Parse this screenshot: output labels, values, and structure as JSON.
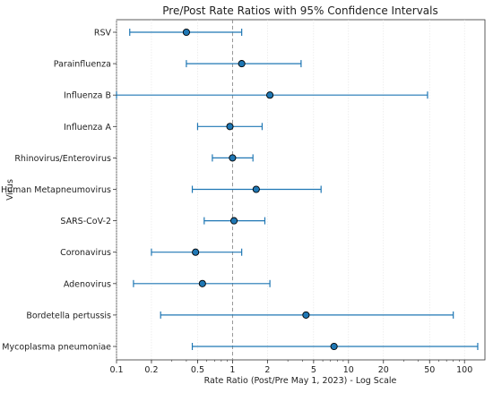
{
  "chart_data": {
    "type": "scatter",
    "title": "Pre/Post Rate Ratios with 95% Confidence Intervals",
    "xlabel": "Rate Ratio (Post/Pre May 1, 2023) - Log Scale",
    "ylabel": "Virus",
    "x_scale": "log",
    "xlim": [
      0.1,
      150
    ],
    "x_ticks": [
      0.1,
      0.2,
      0.5,
      1,
      2,
      5,
      10,
      20,
      50,
      100
    ],
    "x_tick_labels": [
      "0.1",
      "0.2",
      "0.5",
      "1",
      "2",
      "5",
      "10",
      "20",
      "50",
      "100"
    ],
    "reference_line": 1,
    "grid": "vertical, light dotted",
    "marker_color": "#1f77b4",
    "ci_color": "#1f77b4",
    "categories": [
      "RSV",
      "Parainfluenza",
      "Influenza B",
      "Influenza A",
      "Rhinovirus/Enterovirus",
      "Human Metapneumovirus",
      "SARS-CoV-2",
      "Coronavirus",
      "Adenovirus",
      "Bordetella pertussis",
      "Mycoplasma pneumoniae"
    ],
    "points": [
      {
        "label": "RSV",
        "estimate": 0.4,
        "ci_low": 0.13,
        "ci_high": 1.2
      },
      {
        "label": "Parainfluenza",
        "estimate": 1.2,
        "ci_low": 0.4,
        "ci_high": 3.9
      },
      {
        "label": "Influenza B",
        "estimate": 2.1,
        "ci_low": 0.1,
        "ci_high": 48
      },
      {
        "label": "Influenza A",
        "estimate": 0.95,
        "ci_low": 0.5,
        "ci_high": 1.8
      },
      {
        "label": "Rhinovirus/Enterovirus",
        "estimate": 1.0,
        "ci_low": 0.67,
        "ci_high": 1.5
      },
      {
        "label": "Human Metapneumovirus",
        "estimate": 1.6,
        "ci_low": 0.45,
        "ci_high": 5.8
      },
      {
        "label": "SARS-CoV-2",
        "estimate": 1.03,
        "ci_low": 0.57,
        "ci_high": 1.9
      },
      {
        "label": "Coronavirus",
        "estimate": 0.48,
        "ci_low": 0.2,
        "ci_high": 1.2
      },
      {
        "label": "Adenovirus",
        "estimate": 0.55,
        "ci_low": 0.14,
        "ci_high": 2.1
      },
      {
        "label": "Bordetella pertussis",
        "estimate": 4.3,
        "ci_low": 0.24,
        "ci_high": 80
      },
      {
        "label": "Mycoplasma pneumoniae",
        "estimate": 7.5,
        "ci_low": 0.45,
        "ci_high": 130
      }
    ]
  }
}
